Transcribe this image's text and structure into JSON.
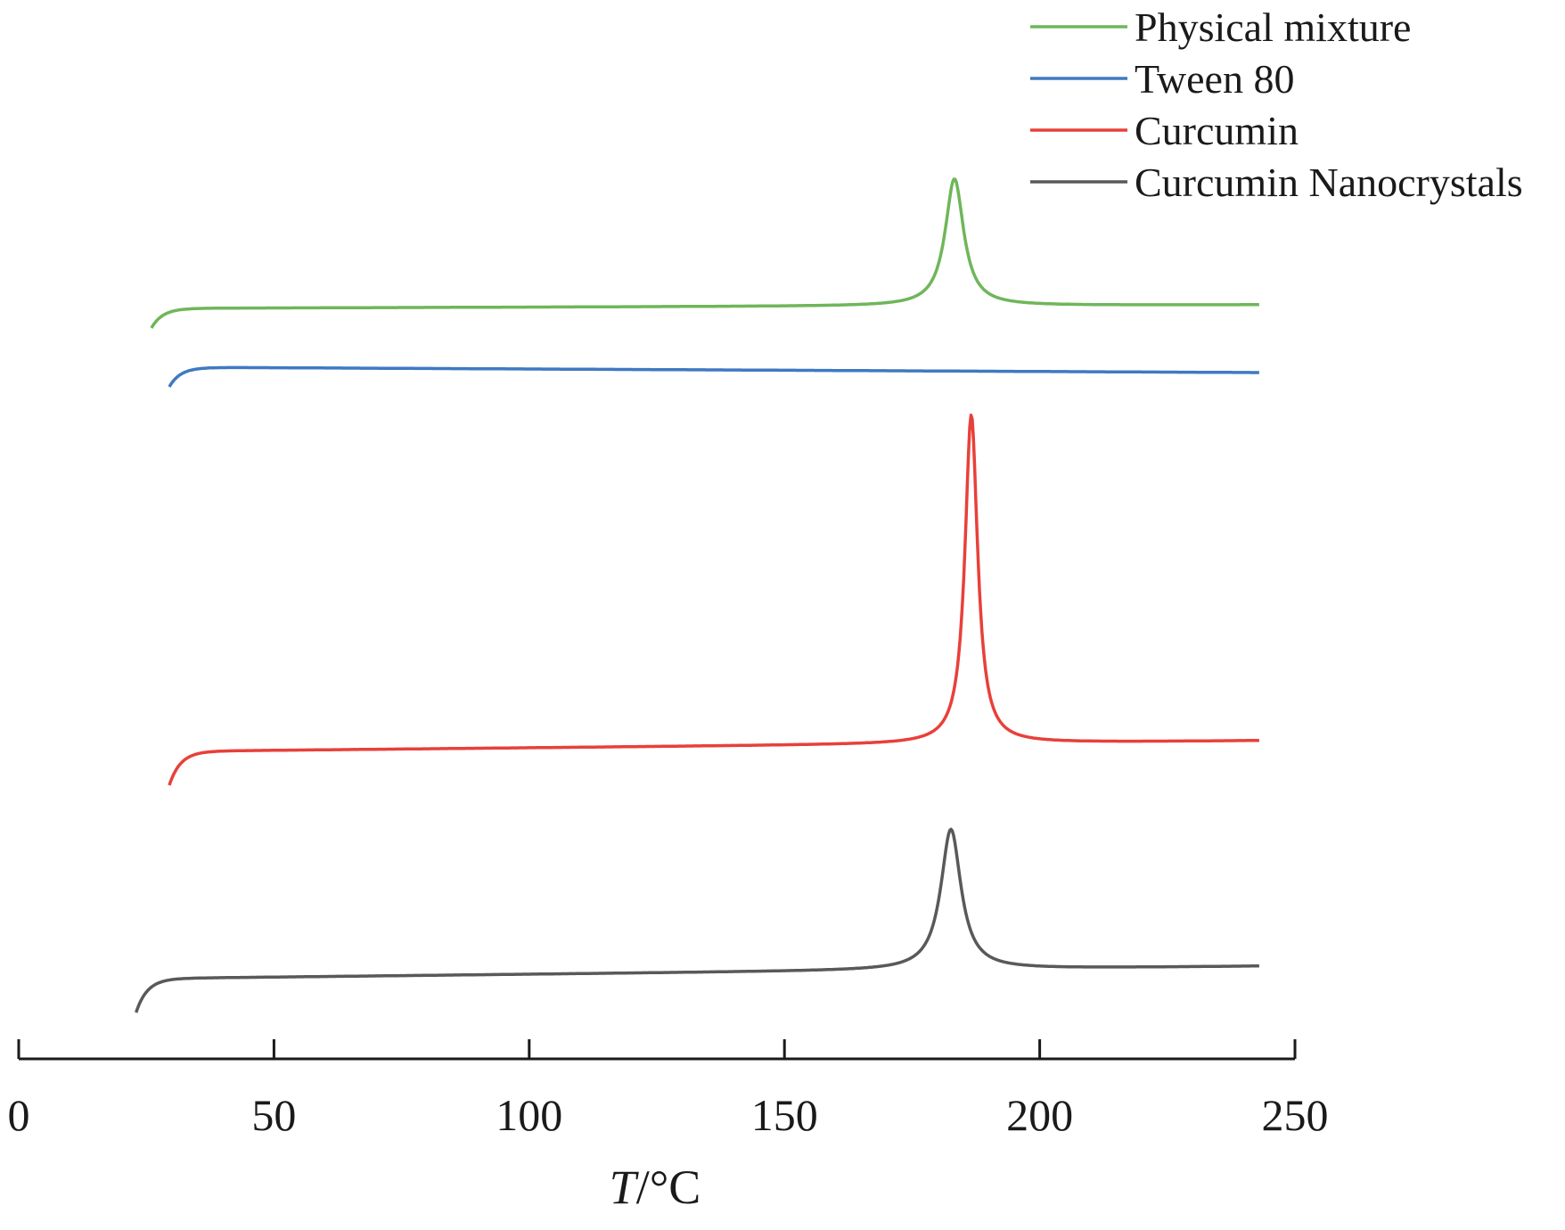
{
  "chart_data": {
    "type": "line",
    "title": "",
    "xlabel": "T/°C",
    "xlabel_var": "T",
    "xlabel_unit": "/°C",
    "ylabel": "",
    "xlim": [
      0,
      250
    ],
    "x_ticks": [
      0,
      50,
      100,
      150,
      200,
      250
    ],
    "x_tick_labels": [
      "0",
      "50",
      "100",
      "150",
      "200",
      "250"
    ],
    "grid": false,
    "legend_position": "top-right",
    "series": [
      {
        "name": "Physical mixture",
        "color": "#6fb65a",
        "x_range": [
          26,
          243
        ],
        "baseline": 0.0,
        "peaks": [
          {
            "x": 183.3,
            "height": 0.95,
            "width": 2.2
          }
        ]
      },
      {
        "name": "Tween 80",
        "color": "#3f79c2",
        "x_range": [
          29.5,
          243
        ],
        "baseline": 0.0,
        "peaks": []
      },
      {
        "name": "Curcumin",
        "color": "#e8403a",
        "x_range": [
          29.5,
          243
        ],
        "baseline": 0.0,
        "peaks": [
          {
            "x": 186.6,
            "height": 2.05,
            "width": 1.5
          }
        ]
      },
      {
        "name": "Curcumin Nanocrystals",
        "color": "#595959",
        "x_range": [
          23,
          243
        ],
        "baseline": 0.0,
        "peaks": [
          {
            "x": 182.6,
            "height": 1.05,
            "width": 2.4
          }
        ]
      }
    ]
  }
}
